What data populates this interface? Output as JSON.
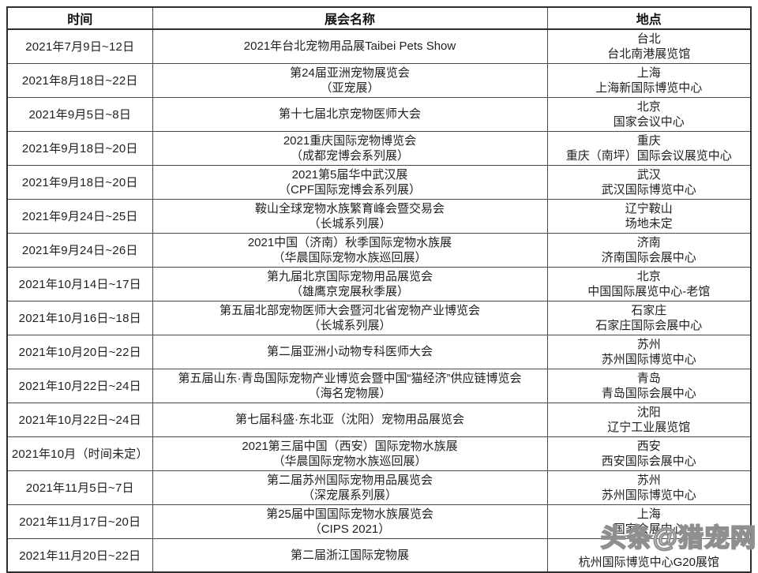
{
  "watermark": "头条@猎宠网",
  "table": {
    "headers": [
      "时间",
      "展会名称",
      "地点"
    ],
    "rows": [
      {
        "time": "2021年7月9日~12日",
        "name": [
          "2021年台北宠物用品展Taibei Pets Show"
        ],
        "location": [
          "台北",
          "台北南港展览馆"
        ]
      },
      {
        "time": "2021年8月18日~22日",
        "name": [
          "第24届亚洲宠物展览会",
          "（亚宠展）"
        ],
        "location": [
          "上海",
          "上海新国际博览中心"
        ]
      },
      {
        "time": "2021年9月5日~8日",
        "name": [
          "第十七届北京宠物医师大会"
        ],
        "location": [
          "北京",
          "国家会议中心"
        ]
      },
      {
        "time": "2021年9月18日~20日",
        "name": [
          "2021重庆国际宠物博览会",
          "（成都宠博会系列展）"
        ],
        "location": [
          "重庆",
          "重庆（南坪）国际会议展览中心"
        ]
      },
      {
        "time": "2021年9月18日~20日",
        "name": [
          "2021第5届华中武汉展",
          "（CPF国际宠博会系列展）"
        ],
        "location": [
          "武汉",
          "武汉国际博览中心"
        ]
      },
      {
        "time": "2021年9月24日~25日",
        "name": [
          "鞍山全球宠物水族繁育峰会暨交易会",
          "（长城系列展）"
        ],
        "location": [
          "辽宁鞍山",
          "场地未定"
        ]
      },
      {
        "time": "2021年9月24日~26日",
        "name": [
          "2021中国（济南）秋季国际宠物水族展",
          "（华晨国际宠物水族巡回展）"
        ],
        "location": [
          "济南",
          "济南国际会展中心"
        ]
      },
      {
        "time": "2021年10月14日~17日",
        "name": [
          "第九届北京国际宠物用品展览会",
          "（雄鹰京宠展秋季展）"
        ],
        "location": [
          "北京",
          "中国国际展览中心-老馆"
        ]
      },
      {
        "time": "2021年10月16日~18日",
        "name": [
          "第五届北部宠物医师大会暨河北省宠物产业博览会",
          "（长城系列展）"
        ],
        "location": [
          "石家庄",
          "石家庄国际会展中心"
        ]
      },
      {
        "time": "2021年10月20日~22日",
        "name": [
          "第二届亚洲小动物专科医师大会"
        ],
        "location": [
          "苏州",
          "苏州国际博览中心"
        ]
      },
      {
        "time": "2021年10月22日~24日",
        "name": [
          "第五届山东·青岛国际宠物产业博览会暨中国“猫经济”供应链博览会",
          "（海名宠物展）"
        ],
        "location": [
          "青岛",
          "青岛国际会展中心"
        ]
      },
      {
        "time": "2021年10月22日~24日",
        "name": [
          "第七届科盛·东北亚（沈阳）宠物用品展览会"
        ],
        "location": [
          "沈阳",
          "辽宁工业展览馆"
        ]
      },
      {
        "time": "2021年10月（时间未定）",
        "name": [
          "2021第三届中国（西安）国际宠物水族展",
          "（华晨国际宠物水族巡回展）"
        ],
        "location": [
          "西安",
          "西安国际会展中心"
        ]
      },
      {
        "time": "2021年11月5日~7日",
        "name": [
          "第二届苏州国际宠物用品展览会",
          "（深宠展系列展）"
        ],
        "location": [
          "苏州",
          "苏州国际博览中心"
        ]
      },
      {
        "time": "2021年11月17日~20日",
        "name": [
          "第25届中国国际宠物水族展览会",
          "（CIPS 2021）"
        ],
        "location": [
          "上海",
          "国家会展中心"
        ]
      },
      {
        "time": "2021年11月20日~22日",
        "name": [
          "第二届浙江国际宠物展"
        ],
        "location": [
          "",
          "杭州国际博览中心G20展馆"
        ]
      }
    ]
  }
}
